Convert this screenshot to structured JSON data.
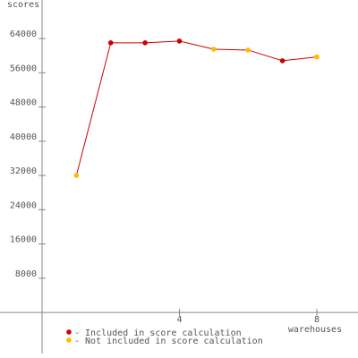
{
  "chart_data": {
    "type": "line",
    "y_label": "scores",
    "x_label": "warehouses",
    "x": [
      1,
      2,
      3,
      4,
      5,
      6,
      7,
      8
    ],
    "values": [
      32000,
      63000,
      63000,
      63400,
      61500,
      61300,
      58800,
      59700
    ],
    "included": [
      false,
      true,
      true,
      true,
      false,
      false,
      true,
      false
    ],
    "line_color": "#cc0000",
    "legend": [
      {
        "label": "- Included in score calculation",
        "color": "#cc0000"
      },
      {
        "label": "- Not included in score calculation",
        "color": "#ffbb00"
      }
    ],
    "xlim": [
      0,
      9.2
    ],
    "xticks": [
      4,
      8
    ],
    "ylim": [
      -9600,
      73000
    ],
    "yticks": [
      8000,
      16000,
      24000,
      32000,
      40000,
      48000,
      56000,
      64000
    ]
  }
}
